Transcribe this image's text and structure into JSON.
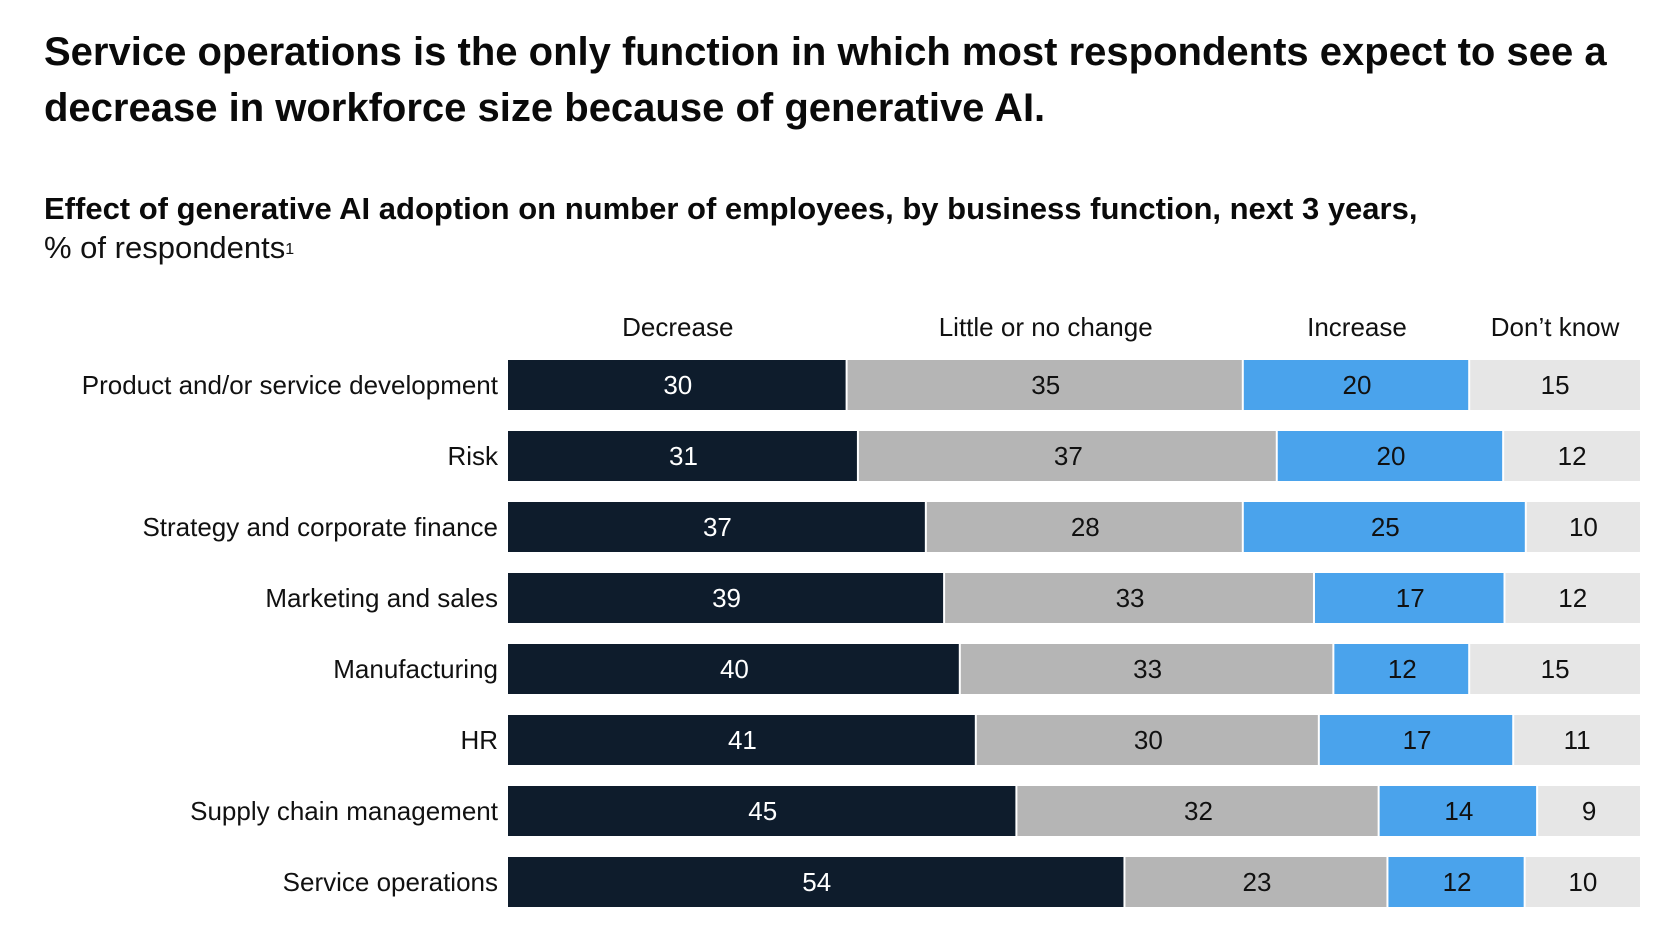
{
  "title": "Service operations is the only function in which most respondents expect to see a decrease in workforce size because of generative AI.",
  "subtitle": "Effect of generative AI adoption on number of employees, by business function, next 3 years,",
  "unit_label": "% of respondents",
  "unit_footnote": "1",
  "chart_data": {
    "type": "bar",
    "orientation": "horizontal",
    "stacked": true,
    "grid": false,
    "legend_placement": "top",
    "categories": [
      "Product and/or service development",
      "Risk",
      "Strategy and corporate finance",
      "Marketing and sales",
      "Manufacturing",
      "HR",
      "Supply chain management",
      "Service operations"
    ],
    "series": [
      {
        "name": "Decrease",
        "color": "#0e1c2c",
        "label_color": "#ffffff",
        "values": [
          30,
          31,
          37,
          39,
          40,
          41,
          45,
          54
        ]
      },
      {
        "name": "Little or no change",
        "color": "#b5b5b5",
        "label_color": "#111111",
        "values": [
          35,
          37,
          28,
          33,
          33,
          30,
          32,
          23
        ]
      },
      {
        "name": "Increase",
        "color": "#4aa3ec",
        "label_color": "#111111",
        "values": [
          20,
          20,
          25,
          17,
          12,
          17,
          14,
          12
        ]
      },
      {
        "name": "Don’t know",
        "color": "#e6e6e6",
        "label_color": "#111111",
        "values": [
          15,
          12,
          10,
          12,
          15,
          11,
          9,
          10
        ]
      }
    ],
    "xlim": [
      0,
      100
    ]
  }
}
